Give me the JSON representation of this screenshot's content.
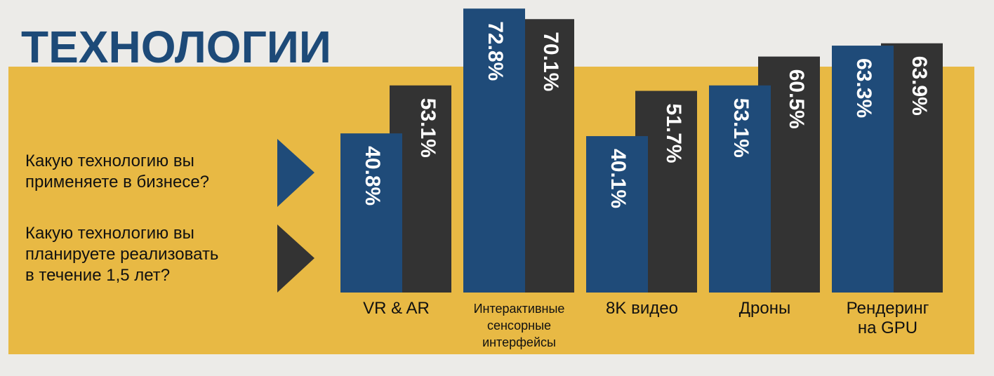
{
  "chart_data": {
    "type": "bar",
    "title": "ТЕХНОЛОГИИ",
    "categories": [
      "VR & AR",
      "Интерактивные\nсенсорные\nинтерфейсы",
      "8K видео",
      "Дроны",
      "Рендеринг\nна GPU"
    ],
    "series": [
      {
        "name": "Какую технологию вы\nприменяете в бизнесе?",
        "color": "#1f4b79",
        "values": [
          40.8,
          72.8,
          40.1,
          53.1,
          63.3
        ],
        "value_labels": [
          "40.8%",
          "72.8%",
          "40.1%",
          "53.1%",
          "63.3%"
        ]
      },
      {
        "name": "Какую технологию вы\nпланируете реализовать\nв течение 1,5 лет?",
        "color": "#333333",
        "values": [
          53.1,
          70.1,
          51.7,
          60.5,
          63.9
        ],
        "value_labels": [
          "53.1%",
          "70.1%",
          "51.7%",
          "60.5%",
          "63.9%"
        ]
      }
    ]
  }
}
